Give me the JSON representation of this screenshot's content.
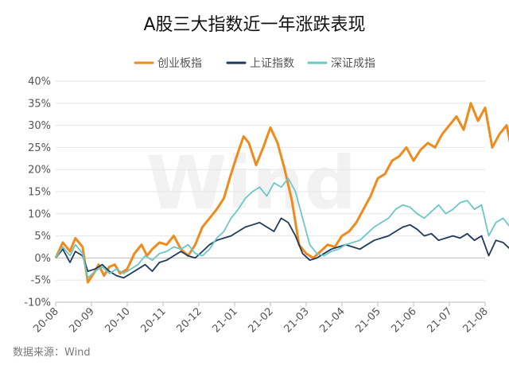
{
  "chart_data": {
    "type": "line",
    "title": "A股三大指数近一年涨跌表现",
    "source": "数据来源：Wind",
    "watermark": "Wind",
    "ylim": [
      -10,
      40
    ],
    "yticks": [
      "-10%",
      "-5%",
      "0%",
      "5%",
      "10%",
      "15%",
      "20%",
      "25%",
      "30%",
      "35%",
      "40%"
    ],
    "ytick_values": [
      -10,
      -5,
      0,
      5,
      10,
      15,
      20,
      25,
      30,
      35,
      40
    ],
    "xticks": [
      "20-08",
      "20-09",
      "20-10",
      "20-11",
      "20-12",
      "21-01",
      "21-02",
      "21-03",
      "21-04",
      "21-05",
      "21-06",
      "21-07",
      "21-08"
    ],
    "legend_position": "top",
    "series": [
      {
        "name": "创业板指",
        "color": "#F08A1C",
        "x": [
          0,
          0.2,
          0.4,
          0.55,
          0.75,
          0.9,
          1.1,
          1.2,
          1.35,
          1.5,
          1.65,
          1.8,
          2.0,
          2.2,
          2.4,
          2.55,
          2.7,
          2.9,
          3.1,
          3.3,
          3.5,
          3.7,
          3.9,
          4.1,
          4.3,
          4.5,
          4.7,
          4.9,
          5.1,
          5.25,
          5.4,
          5.6,
          5.8,
          6.0,
          6.2,
          6.4,
          6.6,
          6.8,
          7.0,
          7.2,
          7.4,
          7.6,
          7.8,
          8.0,
          8.2,
          8.4,
          8.6,
          8.8,
          9.0,
          9.2,
          9.4,
          9.6,
          9.8,
          10.0,
          10.2,
          10.4,
          10.6,
          10.8,
          11.0,
          11.2,
          11.4,
          11.6,
          11.8,
          12.0,
          12.2,
          12.4,
          12.6,
          12.8,
          12.95
        ],
        "values": [
          0,
          3.5,
          1.5,
          4.5,
          2.5,
          -5.5,
          -3,
          -1.5,
          -4,
          -2,
          -1.5,
          -3.5,
          -2.5,
          1,
          3,
          0.5,
          2,
          3.5,
          3,
          5,
          2,
          0.5,
          3,
          7,
          9,
          11,
          13.5,
          19,
          24,
          27.5,
          26,
          21,
          25,
          29.5,
          26,
          20,
          13,
          3,
          1,
          0,
          1.5,
          3,
          2.5,
          5,
          6,
          8,
          11,
          14,
          18,
          19,
          22,
          23,
          25,
          22,
          24.5,
          26,
          25,
          28,
          30,
          32,
          29,
          35,
          31,
          34,
          25,
          28,
          30,
          22,
          26.5
        ]
      },
      {
        "name": "上证指数",
        "color": "#1F3A5F",
        "x": [
          0,
          0.2,
          0.4,
          0.55,
          0.75,
          0.9,
          1.1,
          1.3,
          1.5,
          1.7,
          1.9,
          2.1,
          2.3,
          2.5,
          2.7,
          2.9,
          3.1,
          3.3,
          3.5,
          3.7,
          3.9,
          4.1,
          4.3,
          4.5,
          4.7,
          4.9,
          5.1,
          5.3,
          5.5,
          5.7,
          5.9,
          6.1,
          6.3,
          6.5,
          6.7,
          6.9,
          7.1,
          7.3,
          7.5,
          7.7,
          7.9,
          8.1,
          8.3,
          8.5,
          8.7,
          8.9,
          9.1,
          9.3,
          9.5,
          9.7,
          9.9,
          10.1,
          10.3,
          10.5,
          10.7,
          10.9,
          11.1,
          11.3,
          11.5,
          11.7,
          11.9,
          12.1,
          12.3,
          12.5,
          12.7,
          12.95
        ],
        "values": [
          0,
          2,
          -1,
          1.5,
          0.5,
          -3,
          -2.5,
          -1.5,
          -3,
          -4,
          -4.5,
          -3.5,
          -2.5,
          -1.5,
          -3,
          -1,
          -0.5,
          0.5,
          1.5,
          0.5,
          0,
          1.5,
          3,
          4,
          4.5,
          5,
          6,
          7,
          7.5,
          8,
          7,
          6,
          9,
          8,
          5,
          1,
          -0.5,
          0,
          1,
          2,
          2.5,
          3,
          2.5,
          2,
          3,
          4,
          4.5,
          5,
          6,
          7,
          7.5,
          6.5,
          5,
          5.5,
          4,
          4.5,
          5,
          4.5,
          5.5,
          4,
          5,
          0.5,
          4,
          3.5,
          2,
          3.5
        ]
      },
      {
        "name": "深证成指",
        "color": "#6CC7C7",
        "x": [
          0,
          0.2,
          0.4,
          0.55,
          0.75,
          0.9,
          1.1,
          1.3,
          1.5,
          1.7,
          1.9,
          2.1,
          2.3,
          2.5,
          2.7,
          2.9,
          3.1,
          3.3,
          3.5,
          3.7,
          3.9,
          4.1,
          4.3,
          4.5,
          4.7,
          4.9,
          5.1,
          5.3,
          5.5,
          5.7,
          5.9,
          6.1,
          6.3,
          6.5,
          6.7,
          6.9,
          7.1,
          7.3,
          7.5,
          7.7,
          7.9,
          8.1,
          8.3,
          8.5,
          8.7,
          8.9,
          9.1,
          9.3,
          9.5,
          9.7,
          9.9,
          10.1,
          10.3,
          10.5,
          10.7,
          10.9,
          11.1,
          11.3,
          11.5,
          11.7,
          11.9,
          12.1,
          12.3,
          12.5,
          12.7,
          12.95
        ],
        "values": [
          0,
          2.5,
          0.5,
          3,
          1,
          -4.5,
          -3,
          -2,
          -3.5,
          -2.5,
          -3.5,
          -2.5,
          -1.5,
          0.5,
          -0.5,
          1,
          1.5,
          2.5,
          2,
          3,
          1,
          0.5,
          2,
          4.5,
          6,
          9,
          11,
          13.5,
          15,
          16,
          14,
          17,
          16,
          18,
          15,
          9,
          3,
          1,
          0.5,
          1.5,
          2,
          3,
          3.5,
          4,
          5.5,
          7,
          8,
          9,
          11,
          12,
          11.5,
          10,
          9,
          10.5,
          12,
          10,
          11,
          12.5,
          13,
          11,
          12,
          5,
          8,
          9,
          7,
          8.8
        ]
      }
    ]
  }
}
